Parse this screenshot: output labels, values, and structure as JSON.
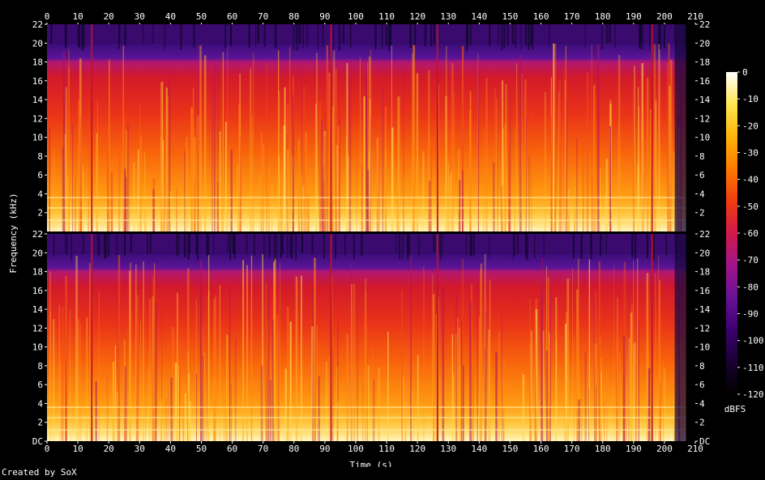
{
  "chart_data": {
    "type": "heatmap",
    "title": "",
    "xlabel": "Time (s)",
    "ylabel": "Frequency (kHz)",
    "x_ticks": [
      0,
      10,
      20,
      30,
      40,
      50,
      60,
      70,
      80,
      90,
      100,
      110,
      120,
      130,
      140,
      150,
      160,
      170,
      180,
      190,
      200,
      210
    ],
    "xlim": [
      0,
      210
    ],
    "y_ticks": [
      {
        "value": 0,
        "label": "DC"
      },
      {
        "value": 2,
        "label": "2"
      },
      {
        "value": 4,
        "label": "4"
      },
      {
        "value": 6,
        "label": "6"
      },
      {
        "value": 8,
        "label": "8"
      },
      {
        "value": 10,
        "label": "10"
      },
      {
        "value": 12,
        "label": "12"
      },
      {
        "value": 14,
        "label": "14"
      },
      {
        "value": 16,
        "label": "16"
      },
      {
        "value": 18,
        "label": "18"
      },
      {
        "value": 20,
        "label": "20"
      },
      {
        "value": 22,
        "label": "22"
      }
    ],
    "ylim": [
      0,
      22
    ],
    "channels": 2,
    "colorbar": {
      "label": "dBFS",
      "ticks": [
        0,
        -10,
        -20,
        -30,
        -40,
        -50,
        -60,
        -70,
        -80,
        -90,
        -100,
        -110,
        -120
      ],
      "range": [
        -120,
        0
      ],
      "colors": [
        "#000000",
        "#1a0033",
        "#3c0070",
        "#6a1196",
        "#a0148c",
        "#d2194a",
        "#f03c0f",
        "#ff7a00",
        "#ffb40a",
        "#ffe650",
        "#ffffff"
      ]
    },
    "lowpass_cutoff_khz": 20,
    "audio_end_s": 207,
    "quiet_moments_s": [
      14.5,
      92,
      126.5,
      196
    ]
  },
  "footer": "Created by SoX"
}
